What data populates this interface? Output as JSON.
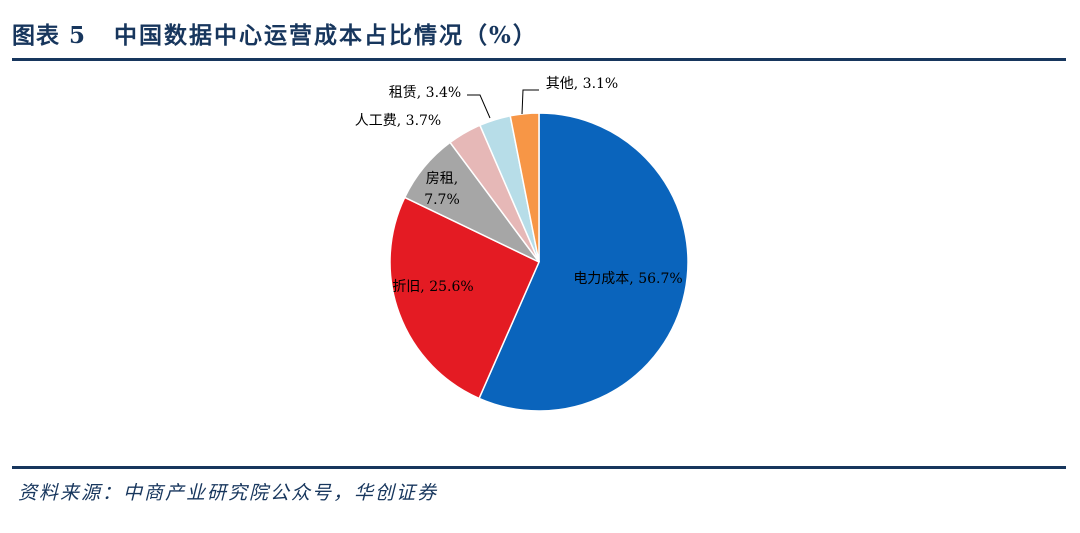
{
  "header": {
    "figure_label": "图表 5",
    "title": "中国数据中心运营成本占比情况（%）"
  },
  "footer": {
    "source": "资料来源：中商产业研究院公众号，华创证券"
  },
  "chart_data": {
    "type": "pie",
    "title": "中国数据中心运营成本占比情况（%）",
    "unit": "%",
    "start_angle_deg": 0,
    "direction": "clockwise",
    "slices": [
      {
        "label": "电力成本",
        "value": 56.7,
        "display": "电力成本, 56.7%",
        "color": "#0a64bc"
      },
      {
        "label": "折旧",
        "value": 25.6,
        "display": "折旧, 25.6%",
        "color": "#e41b23"
      },
      {
        "label": "房租",
        "value": 7.7,
        "display": "房租, 7.7%",
        "display_lines": [
          "房租,",
          "7.7%"
        ],
        "color": "#a6a6a6"
      },
      {
        "label": "人工费",
        "value": 3.7,
        "display": "人工费, 3.7%",
        "color": "#e6b8b7"
      },
      {
        "label": "租赁",
        "value": 3.4,
        "display": "租赁, 3.4%",
        "color": "#b7dde8"
      },
      {
        "label": "其他",
        "value": 3.1,
        "display": "其他, 3.1%",
        "color": "#f79646"
      }
    ]
  }
}
